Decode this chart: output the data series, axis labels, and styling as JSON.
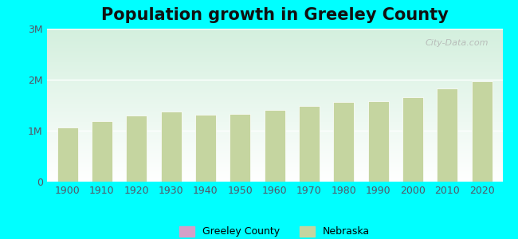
{
  "title": "Population growth in Greeley County",
  "background_color": "#00FFFF",
  "years": [
    1900,
    1910,
    1920,
    1930,
    1940,
    1950,
    1960,
    1970,
    1980,
    1990,
    2000,
    2010,
    2020
  ],
  "nebraska_values": [
    1060000,
    1190000,
    1296000,
    1378000,
    1315000,
    1325000,
    1411000,
    1485000,
    1570000,
    1578000,
    1660000,
    1826000,
    1961000
  ],
  "greeley_county_values": [
    0,
    0,
    4000,
    0,
    0,
    0,
    0,
    0,
    0,
    0,
    0,
    0,
    0
  ],
  "nebraska_color": "#c5d5a0",
  "greeley_color": "#d4a0c8",
  "ylim": [
    0,
    3000000
  ],
  "yticks": [
    0,
    1000000,
    2000000,
    3000000
  ],
  "ytick_labels": [
    "0",
    "1M",
    "2M",
    "3M"
  ],
  "legend_greeley": "Greeley County",
  "legend_nebraska": "Nebraska",
  "watermark": "City-Data.com",
  "title_fontsize": 15,
  "tick_fontsize": 9,
  "legend_fontsize": 9
}
